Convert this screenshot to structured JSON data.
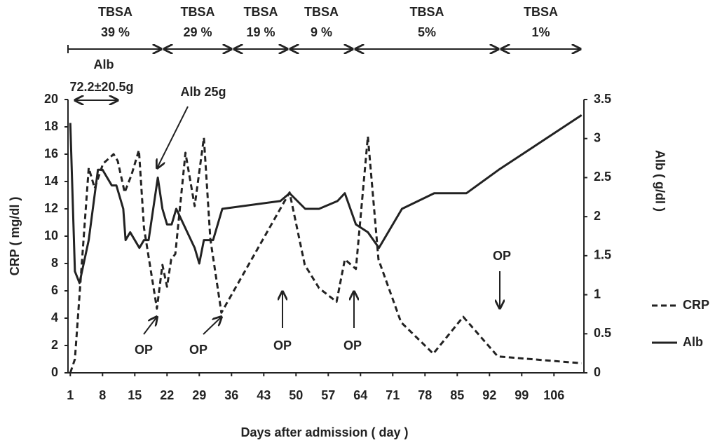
{
  "chart_data": {
    "type": "line",
    "x_label": "Days after admission ( day )",
    "y_label": "CRP ( mg/dl )",
    "y2_label": "Alb ( g/dl )",
    "xlim": [
      0.5,
      112.5
    ],
    "xticks": [
      1,
      8,
      15,
      22,
      29,
      36,
      43,
      50,
      57,
      64,
      71,
      78,
      85,
      92,
      99,
      106
    ],
    "ylim": [
      0,
      20
    ],
    "yticks": [
      0,
      2,
      4,
      6,
      8,
      10,
      12,
      14,
      16,
      18,
      20
    ],
    "y2lim": [
      0,
      3.5
    ],
    "y2ticks": [
      0,
      0.5,
      1,
      1.5,
      2,
      2.5,
      3,
      3.5
    ],
    "legend": "right",
    "series": [
      {
        "name": "CRP",
        "color": "#222222",
        "dash": true,
        "x": [
          1,
          2,
          5,
          6.3,
          8.1,
          10.4,
          11.3,
          12.8,
          14.3,
          15.9,
          17,
          19.8,
          21,
          22,
          22.9,
          23.8,
          26,
          28,
          30,
          31.4,
          33.8,
          48.6,
          51.9,
          55,
          58.8,
          60.6,
          63,
          65.6,
          67.9,
          72.8,
          79.8,
          86.3,
          93.8,
          112
        ],
        "values": [
          0,
          1,
          15,
          13.5,
          15.3,
          16,
          15.5,
          13.2,
          14.5,
          16.3,
          10.6,
          4.7,
          7.9,
          6.3,
          8.3,
          8.7,
          16.1,
          12.2,
          17.2,
          9.8,
          4.4,
          13.2,
          7.9,
          6.2,
          5.2,
          8.3,
          7.6,
          17.3,
          8.3,
          3.7,
          1.4,
          4.1,
          1.2,
          0.7
        ]
      },
      {
        "name": "Alb",
        "color": "#222222",
        "dash": false,
        "axis": "y2",
        "x": [
          1,
          2,
          3,
          5,
          7,
          8,
          10,
          11,
          12.5,
          13,
          14,
          16,
          17,
          18,
          20,
          21,
          22,
          23,
          24,
          25.6,
          28,
          29,
          30,
          32,
          34,
          46.6,
          48.6,
          52,
          55,
          59,
          60.6,
          63,
          65.6,
          68,
          73,
          80,
          87,
          94,
          112
        ],
        "values": [
          3.2,
          1.3,
          1.15,
          1.7,
          2.6,
          2.6,
          2.4,
          2.4,
          2.1,
          1.7,
          1.8,
          1.6,
          1.7,
          1.7,
          2.5,
          2.1,
          1.9,
          1.9,
          2.1,
          1.9,
          1.6,
          1.4,
          1.7,
          1.7,
          2.1,
          2.2,
          2.3,
          2.1,
          2.1,
          2.2,
          2.3,
          1.9,
          1.8,
          1.6,
          2.1,
          2.3,
          2.3,
          2.6,
          3.3
        ]
      }
    ],
    "phases": [
      {
        "title": "TBSA",
        "label": "39 %"
      },
      {
        "title": "TBSA",
        "label": "29 %"
      },
      {
        "title": "TBSA",
        "label": "19 %"
      },
      {
        "title": "TBSA",
        "label": "9 %"
      },
      {
        "title": "TBSA",
        "label": "5%"
      },
      {
        "title": "TBSA",
        "label": "1%"
      }
    ],
    "annotations": [
      "Alb",
      "72.2±20.5g",
      "Alb 25g",
      "OP",
      "OP",
      "OP",
      "OP",
      "OP"
    ]
  }
}
